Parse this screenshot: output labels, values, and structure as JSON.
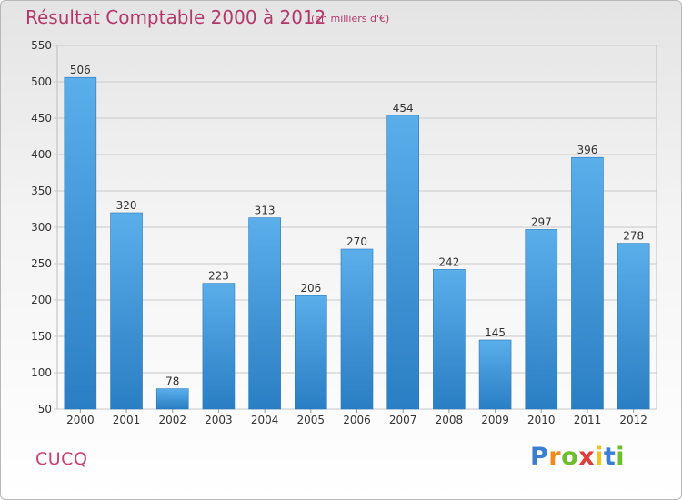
{
  "chart_data": {
    "type": "bar",
    "title": "Résultat Comptable 2000 à 2012",
    "subtitle": "(en milliers d'€)",
    "categories": [
      "2000",
      "2001",
      "2002",
      "2003",
      "2004",
      "2005",
      "2006",
      "2007",
      "2008",
      "2009",
      "2010",
      "2011",
      "2012"
    ],
    "values": [
      506,
      320,
      78,
      223,
      313,
      206,
      270,
      454,
      242,
      145,
      297,
      396,
      278
    ],
    "ylim": [
      50,
      550
    ],
    "yticks": [
      50,
      100,
      150,
      200,
      250,
      300,
      350,
      400,
      450,
      500,
      550
    ],
    "xlabel": "",
    "ylabel": "",
    "grid": true,
    "legend": "none"
  },
  "place_name": "CUCQ",
  "logo": {
    "letters": [
      "P",
      "r",
      "o",
      "x",
      "i",
      "t",
      "i"
    ],
    "colors": [
      "#3b7fd4",
      "#f28b1e",
      "#6cbf2a",
      "#e23c3c",
      "#f2c21e",
      "#3b7fd4",
      "#6cbf2a"
    ]
  },
  "colors": {
    "title": "#b3386a",
    "bar_light": "#5aaeea",
    "bar_dark": "#2a7ec3",
    "grid": "#c8c8c8",
    "axis_text": "#333333"
  }
}
